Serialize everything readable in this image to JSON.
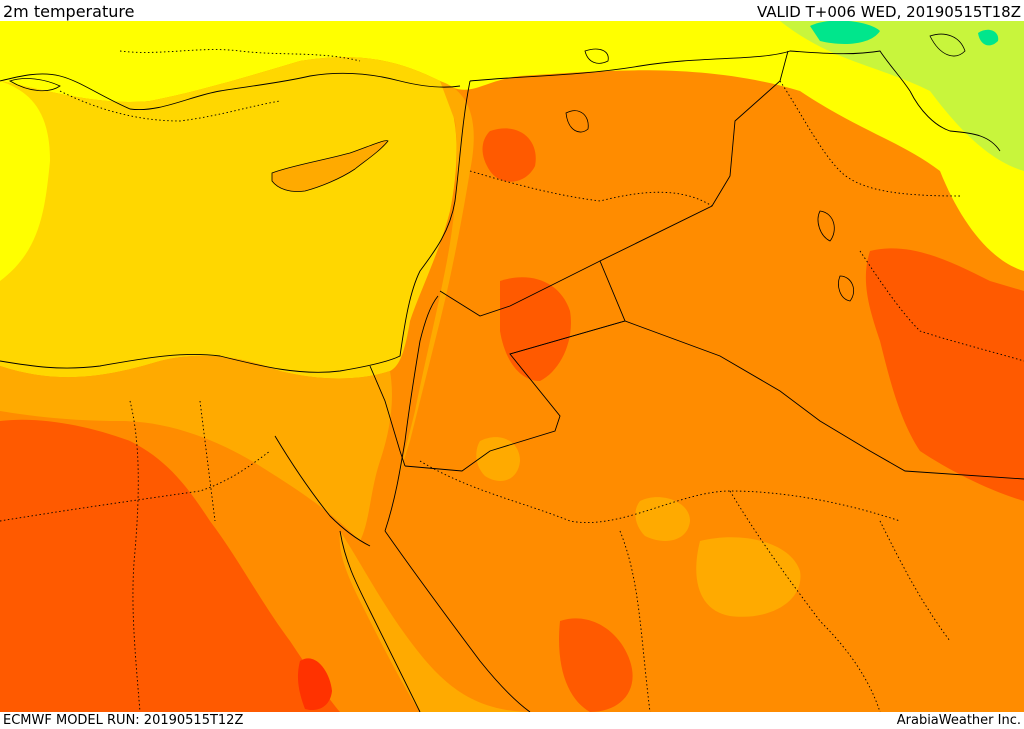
{
  "header": {
    "title": "2m temperature",
    "valid_time": "VALID T+006 WED, 20190515T18Z"
  },
  "footer": {
    "model_run": "ECMWF MODEL RUN: 20190515T12Z",
    "credit": "ArabiaWeather Inc."
  },
  "colors": {
    "cool_green": "#00e68c",
    "light_green": "#c8f53c",
    "yellow": "#ffff00",
    "gold": "#ffd700",
    "orange_light": "#ffaa00",
    "orange": "#ff8c00",
    "orange_dark": "#ff5a00",
    "red_orange": "#ff3200",
    "boundary": "#000000"
  }
}
